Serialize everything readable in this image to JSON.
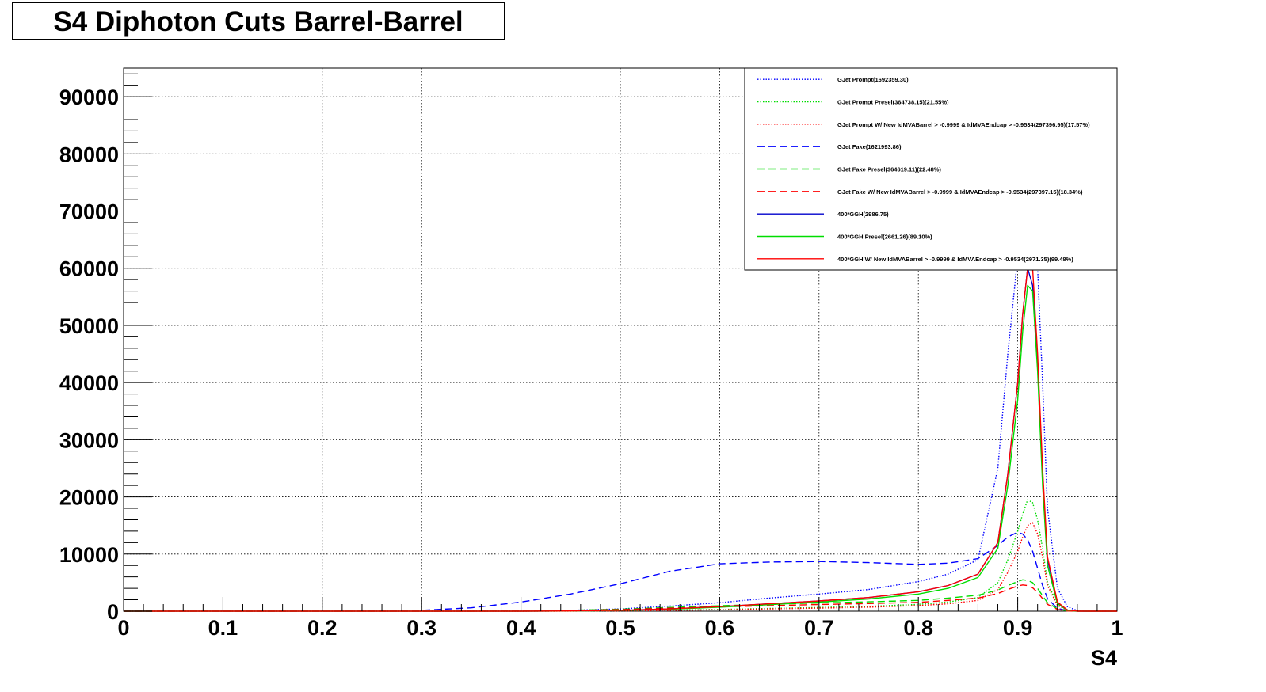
{
  "chart_data": {
    "type": "line",
    "title": "S4 Diphoton Cuts Barrel-Barrel",
    "xlabel": "S4",
    "ylabel": "",
    "xlim": [
      0,
      1
    ],
    "ylim": [
      0,
      95000
    ],
    "x_ticks": [
      "0",
      "0.1",
      "0.2",
      "0.3",
      "0.4",
      "0.5",
      "0.6",
      "0.7",
      "0.8",
      "0.9",
      "1"
    ],
    "y_ticks": [
      "0",
      "10000",
      "20000",
      "30000",
      "40000",
      "50000",
      "60000",
      "70000",
      "80000",
      "90000"
    ],
    "grid": true,
    "legend_position": "top-right",
    "x": [
      0.0,
      0.05,
      0.1,
      0.15,
      0.2,
      0.25,
      0.3,
      0.35,
      0.4,
      0.45,
      0.5,
      0.55,
      0.6,
      0.65,
      0.7,
      0.75,
      0.8,
      0.83,
      0.86,
      0.88,
      0.89,
      0.9,
      0.905,
      0.91,
      0.915,
      0.92,
      0.925,
      0.93,
      0.94,
      0.95,
      0.96,
      0.97,
      1.0
    ],
    "series": [
      {
        "name": "GJet Prompt(1692359.30)",
        "color": "#0000ff",
        "style": "dotted",
        "values": [
          0,
          0,
          0,
          0,
          0,
          0,
          0,
          0,
          50,
          150,
          400,
          900,
          1500,
          2300,
          3000,
          3800,
          5200,
          6500,
          9000,
          25000,
          45000,
          62000,
          70000,
          72000,
          70000,
          60000,
          40000,
          18000,
          4000,
          800,
          100,
          0,
          0
        ]
      },
      {
        "name": "GJet Prompt Presel(364738.15)(21.55%)",
        "color": "#00dd00",
        "style": "dotted",
        "values": [
          0,
          0,
          0,
          0,
          0,
          0,
          0,
          0,
          0,
          30,
          80,
          180,
          300,
          480,
          650,
          850,
          1200,
          1600,
          2400,
          5000,
          9000,
          14000,
          17000,
          19500,
          19000,
          16000,
          11000,
          5000,
          1200,
          250,
          30,
          0,
          0
        ]
      },
      {
        "name": "GJet Prompt W/ New IdMVABarrel > -0.9999 & IdMVAEndcap > -0.9534(297396.95)(17.57%)",
        "color": "#ff0000",
        "style": "dotted",
        "values": [
          0,
          0,
          0,
          0,
          0,
          0,
          0,
          0,
          0,
          20,
          60,
          140,
          250,
          400,
          540,
          700,
          1000,
          1300,
          1900,
          3800,
          6800,
          10500,
          13000,
          15000,
          15500,
          13500,
          9500,
          4500,
          1000,
          200,
          20,
          0,
          0
        ]
      },
      {
        "name": "GJet Fake(1621993.86)",
        "color": "#0000ff",
        "style": "dashed",
        "values": [
          0,
          0,
          0,
          0,
          0,
          50,
          150,
          600,
          1600,
          3000,
          4800,
          7000,
          8300,
          8600,
          8700,
          8500,
          8200,
          8400,
          9200,
          11500,
          13000,
          13800,
          13500,
          12500,
          10500,
          7500,
          4500,
          2200,
          500,
          80,
          10,
          0,
          0
        ]
      },
      {
        "name": "GJet Fake Presel(364619.11)(22.48%)",
        "color": "#00dd00",
        "style": "dashed",
        "values": [
          0,
          0,
          0,
          0,
          0,
          0,
          0,
          0,
          50,
          150,
          350,
          650,
          950,
          1200,
          1450,
          1650,
          1900,
          2300,
          2800,
          3700,
          4500,
          5200,
          5500,
          5400,
          5000,
          4000,
          2700,
          1500,
          400,
          60,
          5,
          0,
          0
        ]
      },
      {
        "name": "GJet Fake W/ New IdMVABarrel > -0.9999 & IdMVAEndcap > -0.9534(297397.15)(18.34%)",
        "color": "#ff0000",
        "style": "dashed",
        "values": [
          0,
          0,
          0,
          0,
          0,
          0,
          0,
          0,
          40,
          120,
          280,
          520,
          760,
          970,
          1180,
          1350,
          1550,
          1900,
          2300,
          3100,
          3800,
          4400,
          4600,
          4500,
          4100,
          3300,
          2200,
          1200,
          300,
          40,
          5,
          0,
          0
        ]
      },
      {
        "name": "400*GGH(2986.75)",
        "color": "#0000cc",
        "style": "solid",
        "values": [
          0,
          0,
          0,
          0,
          0,
          0,
          0,
          0,
          0,
          40,
          150,
          400,
          800,
          1300,
          1800,
          2400,
          3400,
          4500,
          6500,
          12000,
          24000,
          40000,
          52000,
          60000,
          57000,
          44000,
          24000,
          9000,
          1500,
          200,
          20,
          0,
          0
        ]
      },
      {
        "name": "400*GGH Presel(2661.26)(89.10%)",
        "color": "#00dd00",
        "style": "solid",
        "values": [
          0,
          0,
          0,
          0,
          0,
          0,
          0,
          0,
          0,
          30,
          130,
          350,
          700,
          1150,
          1600,
          2150,
          3000,
          4000,
          5900,
          11000,
          22000,
          37000,
          49000,
          57000,
          56000,
          42000,
          22000,
          8000,
          1300,
          150,
          15,
          0,
          0
        ]
      },
      {
        "name": "400*GGH W/ New IdMVABarrel > -0.9999 & IdMVAEndcap > -0.9534(2971.35)(99.48%)",
        "color": "#ff0000",
        "style": "solid",
        "values": [
          0,
          0,
          0,
          0,
          0,
          0,
          0,
          0,
          0,
          40,
          150,
          400,
          800,
          1300,
          1800,
          2400,
          3400,
          4500,
          6500,
          12000,
          24000,
          40000,
          52000,
          60000,
          60000,
          45000,
          25000,
          9500,
          1600,
          200,
          20,
          0,
          0
        ]
      }
    ]
  }
}
